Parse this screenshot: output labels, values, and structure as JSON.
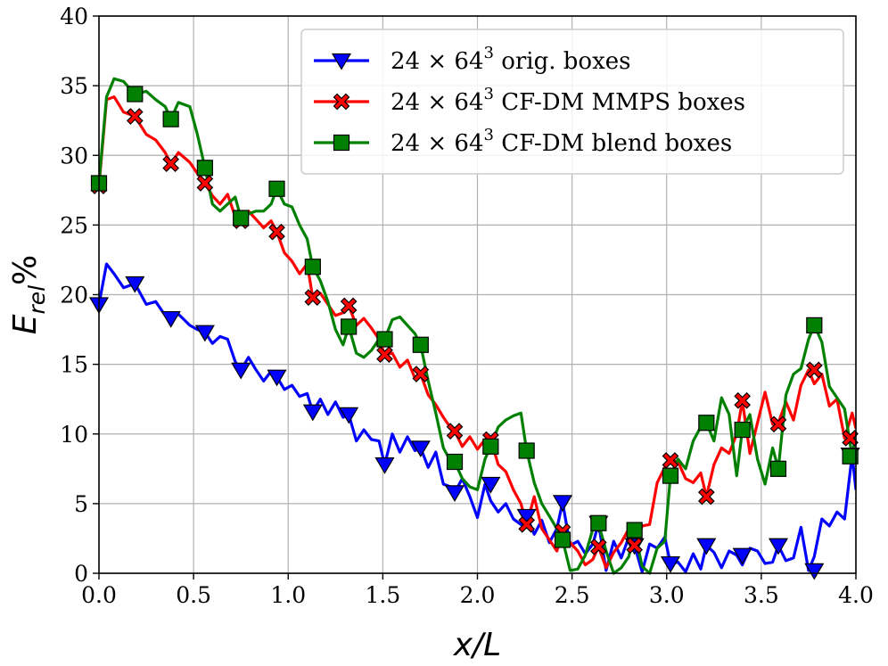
{
  "chart_data": {
    "type": "line",
    "xlabel": "x/L",
    "ylabel": "E_rel%",
    "ylabel_parts": {
      "main": "E",
      "sub": "rel",
      "suffix": "%"
    },
    "xlim": [
      0.0,
      4.0
    ],
    "ylim": [
      0,
      40
    ],
    "x_ticks": [
      "0.0",
      "0.5",
      "1.0",
      "1.5",
      "2.0",
      "2.5",
      "3.0",
      "3.5",
      "4.0"
    ],
    "y_ticks": [
      "0",
      "5",
      "10",
      "15",
      "20",
      "25",
      "30",
      "35",
      "40"
    ],
    "grid": true,
    "legend_position": "top-right",
    "series": [
      {
        "name": "24 × 64³ orig. boxes",
        "legend_label": {
          "pre": "24 × 64",
          "sup": "3",
          "post": " orig. boxes"
        },
        "color": "#0000ff",
        "marker": "triangle-down",
        "x": [
          0.0,
          0.04,
          0.08,
          0.13,
          0.19,
          0.25,
          0.3,
          0.35,
          0.38,
          0.42,
          0.48,
          0.52,
          0.56,
          0.6,
          0.64,
          0.68,
          0.72,
          0.75,
          0.79,
          0.83,
          0.87,
          0.91,
          0.94,
          0.98,
          1.02,
          1.06,
          1.1,
          1.13,
          1.17,
          1.21,
          1.25,
          1.29,
          1.32,
          1.36,
          1.4,
          1.44,
          1.48,
          1.51,
          1.55,
          1.59,
          1.63,
          1.67,
          1.7,
          1.74,
          1.78,
          1.82,
          1.86,
          1.88,
          1.92,
          1.96,
          2.0,
          2.04,
          2.07,
          2.11,
          2.15,
          2.19,
          2.23,
          2.26,
          2.3,
          2.34,
          2.38,
          2.42,
          2.45,
          2.49,
          2.53,
          2.57,
          2.61,
          2.64,
          2.68,
          2.72,
          2.76,
          2.8,
          2.83,
          2.87,
          2.91,
          2.95,
          2.99,
          3.02,
          3.06,
          3.1,
          3.14,
          3.18,
          3.21,
          3.25,
          3.29,
          3.33,
          3.37,
          3.4,
          3.44,
          3.48,
          3.52,
          3.56,
          3.59,
          3.63,
          3.67,
          3.71,
          3.75,
          3.78,
          3.82,
          3.86,
          3.9,
          3.94,
          3.98,
          4.0
        ],
        "values": [
          19.3,
          22.2,
          21.5,
          20.5,
          20.8,
          19.3,
          19.5,
          18.5,
          18.3,
          18.6,
          17.8,
          17.5,
          17.3,
          16.5,
          17.0,
          16.8,
          15.2,
          14.6,
          15.5,
          14.6,
          13.8,
          14.5,
          14.1,
          13.2,
          13.5,
          12.7,
          12.9,
          11.6,
          12.5,
          11.4,
          12.3,
          11.2,
          11.4,
          9.5,
          10.3,
          9.6,
          9.5,
          7.8,
          10.0,
          8.7,
          9.8,
          8.8,
          9.0,
          7.6,
          8.7,
          6.4,
          6.2,
          5.8,
          6.8,
          5.5,
          4.0,
          6.4,
          5.2,
          4.4,
          5.0,
          3.9,
          3.5,
          4.1,
          2.8,
          3.8,
          2.2,
          3.2,
          5.1,
          2.0,
          2.3,
          1.4,
          2.1,
          3.6,
          0.2,
          2.3,
          1.1,
          2.6,
          2.0,
          0.1,
          2.1,
          1.8,
          2.6,
          0.7,
          0.8,
          0.1,
          1.4,
          0.3,
          2.0,
          1.5,
          0.4,
          1.6,
          1.3,
          0.6,
          1.8,
          1.6,
          0.7,
          0.8,
          2.0,
          0.9,
          1.1,
          3.3,
          0.2,
          1.2,
          3.9,
          3.4,
          4.4,
          3.9,
          8.5,
          6.0
        ],
        "markers_x": [
          0.0,
          0.19,
          0.38,
          0.56,
          0.75,
          0.94,
          1.13,
          1.32,
          1.51,
          1.7,
          1.88,
          2.07,
          2.26,
          2.45,
          2.64,
          2.83,
          3.02,
          3.21,
          3.4,
          3.59,
          3.78,
          3.97
        ],
        "markers_y": [
          19.3,
          20.8,
          18.3,
          17.3,
          14.6,
          14.1,
          11.6,
          11.4,
          7.8,
          9.0,
          5.8,
          6.4,
          4.1,
          5.1,
          3.6,
          2.0,
          0.7,
          2.0,
          1.3,
          2.0,
          0.2,
          8.5
        ]
      },
      {
        "name": "24 × 64³ CF-DM MMPS boxes",
        "legend_label": {
          "pre": "24 × 64",
          "sup": "3",
          "post": " CF-DM MMPS boxes"
        },
        "color": "#ff0000",
        "marker": "x",
        "x": [
          0.0,
          0.04,
          0.08,
          0.13,
          0.19,
          0.25,
          0.3,
          0.35,
          0.38,
          0.42,
          0.48,
          0.52,
          0.56,
          0.6,
          0.64,
          0.68,
          0.72,
          0.75,
          0.79,
          0.83,
          0.87,
          0.91,
          0.94,
          0.98,
          1.02,
          1.06,
          1.1,
          1.13,
          1.17,
          1.21,
          1.25,
          1.29,
          1.32,
          1.36,
          1.4,
          1.44,
          1.48,
          1.51,
          1.55,
          1.59,
          1.63,
          1.67,
          1.7,
          1.74,
          1.78,
          1.82,
          1.86,
          1.88,
          1.92,
          1.96,
          2.0,
          2.04,
          2.07,
          2.11,
          2.15,
          2.19,
          2.23,
          2.26,
          2.3,
          2.34,
          2.38,
          2.42,
          2.45,
          2.49,
          2.53,
          2.57,
          2.61,
          2.64,
          2.68,
          2.72,
          2.76,
          2.8,
          2.83,
          2.87,
          2.91,
          2.95,
          2.99,
          3.02,
          3.06,
          3.1,
          3.14,
          3.18,
          3.21,
          3.25,
          3.29,
          3.33,
          3.37,
          3.4,
          3.44,
          3.48,
          3.52,
          3.56,
          3.59,
          3.63,
          3.67,
          3.71,
          3.75,
          3.78,
          3.82,
          3.86,
          3.9,
          3.94,
          3.98,
          4.0
        ],
        "values": [
          27.8,
          34.0,
          34.2,
          33.1,
          32.8,
          31.5,
          31.1,
          30.2,
          29.4,
          30.2,
          29.5,
          28.7,
          28.0,
          27.1,
          26.5,
          27.2,
          25.6,
          25.3,
          26.0,
          25.4,
          24.8,
          25.3,
          24.5,
          23.0,
          22.4,
          21.5,
          22.2,
          19.8,
          20.1,
          19.3,
          18.5,
          18.7,
          19.2,
          17.8,
          18.3,
          17.6,
          16.8,
          15.7,
          15.8,
          14.8,
          15.3,
          14.0,
          14.3,
          12.8,
          12.1,
          11.2,
          10.4,
          10.2,
          9.1,
          9.8,
          8.9,
          9.6,
          9.6,
          7.8,
          7.3,
          6.0,
          5.0,
          3.5,
          5.5,
          3.2,
          2.4,
          1.6,
          3.0,
          2.2,
          1.6,
          0.6,
          1.0,
          1.9,
          0.4,
          1.5,
          2.2,
          3.2,
          2.0,
          3.4,
          3.5,
          6.5,
          7.6,
          8.1,
          8.0,
          6.8,
          6.5,
          7.2,
          5.5,
          7.8,
          9.0,
          8.6,
          10.0,
          12.4,
          8.6,
          10.8,
          13.0,
          10.7,
          10.8,
          12.3,
          11.0,
          13.5,
          14.6,
          13.6,
          14.3,
          12.0,
          12.5,
          9.7,
          11.5,
          10.4
        ],
        "markers_x": [
          0.0,
          0.19,
          0.38,
          0.56,
          0.75,
          0.94,
          1.13,
          1.32,
          1.51,
          1.7,
          1.88,
          2.07,
          2.26,
          2.45,
          2.64,
          2.83,
          3.02,
          3.21,
          3.4,
          3.59,
          3.78,
          3.97
        ],
        "markers_y": [
          27.8,
          32.8,
          29.4,
          28.0,
          25.3,
          24.5,
          19.8,
          19.2,
          15.7,
          14.3,
          10.2,
          9.6,
          3.5,
          3.0,
          1.9,
          2.0,
          8.1,
          5.5,
          12.4,
          10.7,
          14.6,
          9.7
        ]
      },
      {
        "name": "24 × 64³ CF-DM blend boxes",
        "legend_label": {
          "pre": "24 × 64",
          "sup": "3",
          "post": " CF-DM blend boxes"
        },
        "color": "#008000",
        "marker": "square",
        "x": [
          0.0,
          0.04,
          0.08,
          0.13,
          0.19,
          0.25,
          0.3,
          0.35,
          0.38,
          0.42,
          0.48,
          0.52,
          0.56,
          0.6,
          0.64,
          0.68,
          0.72,
          0.75,
          0.79,
          0.83,
          0.87,
          0.91,
          0.94,
          0.98,
          1.02,
          1.06,
          1.1,
          1.13,
          1.17,
          1.21,
          1.25,
          1.29,
          1.32,
          1.36,
          1.4,
          1.44,
          1.48,
          1.51,
          1.55,
          1.59,
          1.63,
          1.67,
          1.7,
          1.74,
          1.78,
          1.82,
          1.86,
          1.88,
          1.92,
          1.96,
          2.0,
          2.04,
          2.07,
          2.11,
          2.15,
          2.19,
          2.23,
          2.26,
          2.3,
          2.34,
          2.38,
          2.42,
          2.45,
          2.49,
          2.53,
          2.57,
          2.61,
          2.64,
          2.68,
          2.72,
          2.76,
          2.8,
          2.83,
          2.87,
          2.91,
          2.95,
          2.99,
          3.02,
          3.06,
          3.1,
          3.14,
          3.18,
          3.21,
          3.25,
          3.29,
          3.33,
          3.37,
          3.4,
          3.44,
          3.48,
          3.52,
          3.56,
          3.59,
          3.63,
          3.67,
          3.71,
          3.75,
          3.78,
          3.82,
          3.86,
          3.9,
          3.94,
          3.98,
          4.0
        ],
        "values": [
          28.0,
          34.2,
          35.5,
          35.3,
          34.4,
          34.6,
          34.0,
          33.5,
          32.6,
          33.8,
          33.5,
          31.5,
          29.1,
          26.5,
          26.0,
          26.5,
          27.0,
          25.5,
          25.8,
          26.0,
          26.0,
          26.5,
          27.6,
          26.5,
          26.3,
          25.0,
          24.0,
          22.0,
          21.0,
          19.5,
          17.5,
          16.4,
          17.7,
          15.8,
          15.5,
          16.0,
          16.8,
          16.8,
          18.2,
          18.4,
          17.8,
          17.2,
          16.4,
          13.8,
          11.5,
          9.0,
          8.0,
          8.0,
          6.8,
          6.2,
          6.0,
          8.2,
          9.1,
          10.5,
          11.0,
          11.3,
          11.5,
          8.8,
          6.5,
          5.0,
          4.1,
          3.2,
          2.4,
          0.2,
          0.3,
          1.3,
          3.2,
          3.6,
          1.6,
          0.0,
          0.4,
          1.2,
          3.1,
          0.5,
          0.0,
          1.8,
          2.3,
          7.0,
          8.2,
          7.5,
          9.5,
          10.5,
          10.8,
          9.5,
          12.6,
          11.4,
          7.0,
          10.3,
          11.4,
          8.2,
          6.4,
          9.0,
          7.5,
          12.8,
          14.3,
          14.7,
          16.8,
          17.8,
          16.6,
          13.4,
          12.6,
          11.8,
          8.4,
          10.0
        ],
        "markers_x": [
          0.0,
          0.19,
          0.38,
          0.56,
          0.75,
          0.94,
          1.13,
          1.32,
          1.51,
          1.7,
          1.88,
          2.07,
          2.26,
          2.45,
          2.64,
          2.83,
          3.02,
          3.21,
          3.4,
          3.59,
          3.78,
          3.97
        ],
        "markers_y": [
          28.0,
          34.4,
          32.6,
          29.1,
          25.5,
          27.6,
          22.0,
          17.7,
          16.8,
          16.4,
          8.0,
          9.1,
          8.8,
          2.4,
          3.6,
          3.1,
          7.0,
          10.8,
          10.3,
          7.5,
          17.8,
          8.4
        ]
      }
    ]
  }
}
